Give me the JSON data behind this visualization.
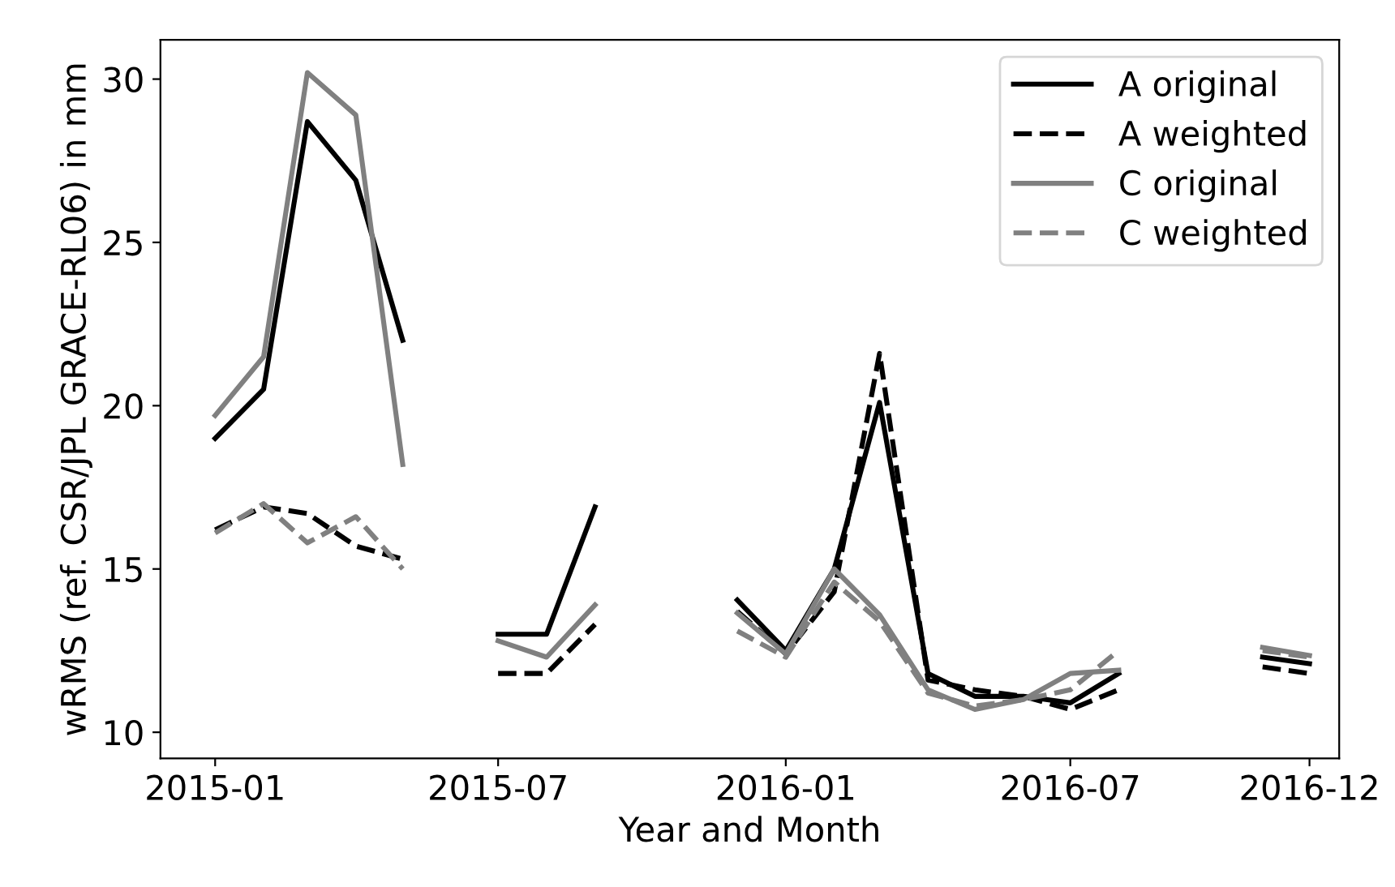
{
  "chart_data": {
    "type": "line",
    "xlabel": "Year and Month",
    "ylabel": "wRMS (ref. CSR/JPL GRACE-RL06) in mm",
    "x": [
      "2015-01",
      "2015-02",
      "2015-03",
      "2015-04",
      "2015-05",
      "2015-06",
      "2015-07",
      "2015-08",
      "2015-09",
      "2015-10",
      "2015-11",
      "2015-12",
      "2016-01",
      "2016-02",
      "2016-03",
      "2016-04",
      "2016-05",
      "2016-06",
      "2016-07",
      "2016-08",
      "2016-09",
      "2016-10",
      "2016-11",
      "2016-12"
    ],
    "series": [
      {
        "name": "A original",
        "color": "#000000",
        "line_style": "solid",
        "values": [
          19.0,
          20.5,
          28.7,
          26.9,
          22.0,
          null,
          13.0,
          13.0,
          16.9,
          null,
          null,
          14.05,
          12.5,
          15.0,
          20.1,
          11.8,
          11.1,
          11.1,
          10.9,
          11.8,
          null,
          null,
          12.3,
          12.1
        ]
      },
      {
        "name": "A weighted",
        "color": "#000000",
        "line_style": "dashed",
        "values": [
          16.2,
          16.9,
          16.7,
          15.7,
          15.3,
          null,
          11.8,
          11.8,
          13.3,
          null,
          null,
          13.7,
          12.4,
          14.3,
          21.6,
          11.6,
          11.3,
          11.1,
          10.7,
          11.3,
          null,
          null,
          12.0,
          11.8
        ]
      },
      {
        "name": "C original",
        "color": "#808080",
        "line_style": "solid",
        "values": [
          19.7,
          21.5,
          30.2,
          28.9,
          18.2,
          null,
          12.8,
          12.3,
          13.9,
          null,
          null,
          13.65,
          12.4,
          15.0,
          13.6,
          11.3,
          10.7,
          11.0,
          11.8,
          11.9,
          null,
          null,
          12.6,
          12.35
        ]
      },
      {
        "name": "C weighted",
        "color": "#808080",
        "line_style": "dashed",
        "values": [
          16.1,
          17.0,
          15.8,
          16.6,
          15.0,
          null,
          null,
          null,
          null,
          null,
          null,
          13.1,
          12.3,
          14.6,
          13.4,
          11.2,
          10.8,
          11.0,
          11.3,
          12.5,
          null,
          null,
          12.5,
          12.3
        ]
      }
    ],
    "xlim": [
      "2014-11-27",
      "2016-12-20"
    ],
    "xticks": [
      "2015-01",
      "2015-07",
      "2016-01",
      "2016-07",
      "2016-12"
    ],
    "ylim": [
      9.2,
      31.2
    ],
    "yticks": [
      10,
      15,
      20,
      25,
      30
    ],
    "legend": "top right",
    "grid": false
  }
}
